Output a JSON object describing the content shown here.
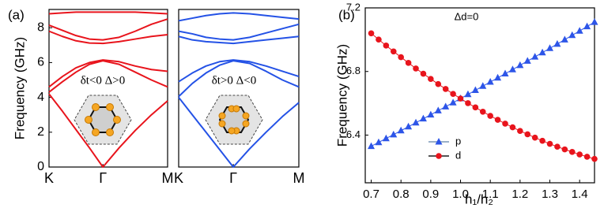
{
  "chart_data": [
    {
      "type": "line",
      "label": "(a)",
      "y_label": "Frequency (GHz)",
      "annotation": "δt<0 Δ>0",
      "color": "#e8141c",
      "x": [
        0,
        0.25,
        0.5,
        0.75,
        1,
        1.3,
        1.6,
        1.9,
        2.2
      ],
      "series": [
        {
          "values": [
            4.2,
            3.2,
            2.15,
            1.1,
            0,
            1.1,
            2.1,
            3.0,
            3.8
          ]
        },
        {
          "values": [
            4.3,
            4.9,
            5.45,
            5.9,
            6.1,
            5.9,
            5.45,
            5.0,
            4.6
          ]
        },
        {
          "values": [
            4.6,
            5.2,
            5.7,
            6.0,
            6.15,
            6.05,
            5.8,
            5.6,
            5.5
          ]
        },
        {
          "values": [
            7.8,
            7.5,
            7.25,
            7.12,
            7.1,
            7.2,
            7.35,
            7.5,
            7.6
          ]
        },
        {
          "values": [
            8.15,
            7.85,
            7.55,
            7.35,
            7.3,
            7.45,
            7.8,
            8.2,
            8.5
          ]
        },
        {
          "values": [
            8.8,
            8.85,
            8.9,
            8.9,
            8.9,
            8.9,
            8.9,
            8.85,
            8.8
          ]
        }
      ],
      "xlim": [
        0,
        2.2
      ],
      "xticks": [
        {
          "value": 0,
          "label": "K"
        },
        {
          "value": 1,
          "label": "Γ"
        },
        {
          "value": 2.2,
          "label": "M"
        }
      ],
      "ylim": [
        0,
        9.05
      ],
      "yticks": [
        0,
        2,
        4,
        6,
        8
      ]
    },
    {
      "type": "line",
      "annotation": "δt>0 Δ<0",
      "color": "#2452e6",
      "x": [
        0,
        0.25,
        0.5,
        0.75,
        1,
        1.3,
        1.6,
        1.9,
        2.2
      ],
      "series": [
        {
          "values": [
            4.0,
            3.0,
            2.0,
            1.0,
            0,
            1.05,
            2.0,
            2.9,
            3.7
          ]
        },
        {
          "values": [
            4.05,
            4.8,
            5.4,
            5.85,
            6.1,
            5.95,
            5.5,
            5.0,
            4.6
          ]
        },
        {
          "values": [
            4.9,
            5.4,
            5.8,
            6.05,
            6.15,
            6.05,
            5.8,
            5.5,
            5.2
          ]
        },
        {
          "values": [
            7.5,
            7.3,
            7.2,
            7.15,
            7.1,
            7.2,
            7.3,
            7.4,
            7.5
          ]
        },
        {
          "values": [
            7.8,
            7.65,
            7.45,
            7.35,
            7.3,
            7.45,
            7.7,
            7.95,
            8.2
          ]
        },
        {
          "values": [
            8.4,
            8.55,
            8.7,
            8.8,
            8.85,
            8.8,
            8.7,
            8.6,
            8.5
          ]
        }
      ],
      "xlim": [
        0,
        2.2
      ],
      "xticks": [
        {
          "value": 0,
          "label": "K"
        },
        {
          "value": 1,
          "label": "Γ"
        },
        {
          "value": 2.2,
          "label": "M"
        }
      ],
      "ylim": [
        0,
        9.05
      ]
    },
    {
      "type": "scatter",
      "label": "(b)",
      "annotation": "Δd=0",
      "x_label": "h₁/h₂",
      "y_label": "Frequency (GHz)",
      "legend": "lower center",
      "x": [
        0.7,
        0.725,
        0.75,
        0.775,
        0.8,
        0.825,
        0.85,
        0.875,
        0.9,
        0.925,
        0.95,
        0.975,
        1.0,
        1.025,
        1.05,
        1.075,
        1.1,
        1.125,
        1.15,
        1.175,
        1.2,
        1.225,
        1.25,
        1.275,
        1.3,
        1.325,
        1.35,
        1.375,
        1.4,
        1.425,
        1.45
      ],
      "series": [
        {
          "name": "p",
          "color": "#2d55e8",
          "marker": "triangle",
          "values": [
            6.33,
            6.354,
            6.379,
            6.403,
            6.428,
            6.453,
            6.478,
            6.503,
            6.528,
            6.554,
            6.579,
            6.604,
            6.63,
            6.656,
            6.682,
            6.708,
            6.734,
            6.76,
            6.786,
            6.812,
            6.839,
            6.866,
            6.892,
            6.919,
            6.946,
            6.973,
            7.0,
            7.028,
            7.055,
            7.083,
            7.11
          ]
        },
        {
          "name": "d",
          "color": "#e8141c",
          "marker": "circle",
          "values": [
            7.04,
            7.001,
            6.963,
            6.926,
            6.89,
            6.854,
            6.819,
            6.786,
            6.753,
            6.721,
            6.69,
            6.659,
            6.63,
            6.601,
            6.574,
            6.547,
            6.521,
            6.496,
            6.472,
            6.449,
            6.426,
            6.405,
            6.384,
            6.364,
            6.345,
            6.327,
            6.31,
            6.294,
            6.278,
            6.264,
            6.25
          ]
        }
      ],
      "xlim": [
        0.68,
        1.45
      ],
      "xticks": [
        0.7,
        0.8,
        0.9,
        {
          "value": 1,
          "label": "1.0"
        },
        1.1,
        1.2,
        1.3,
        1.4
      ],
      "ylim": [
        6.1,
        7.2
      ],
      "yticks": [
        6.4,
        6.8,
        7.2
      ]
    }
  ]
}
